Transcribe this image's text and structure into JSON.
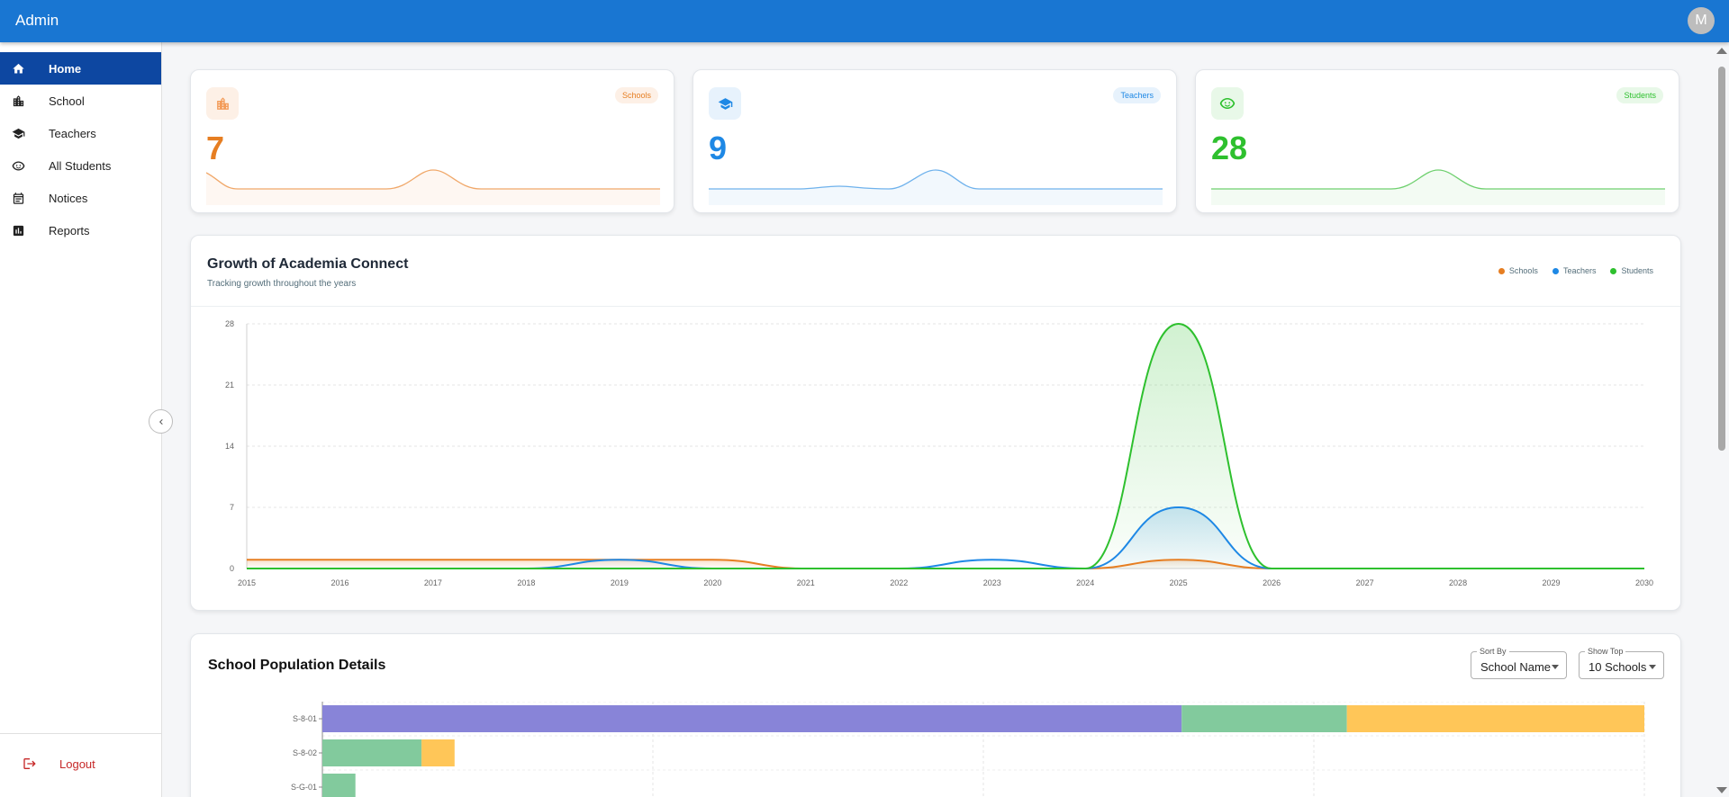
{
  "app": {
    "title": "Admin",
    "avatar_initial": "M"
  },
  "sidebar": {
    "items": [
      {
        "label": "Home",
        "icon": "home-icon",
        "active": true
      },
      {
        "label": "School",
        "icon": "building-icon",
        "active": false
      },
      {
        "label": "Teachers",
        "icon": "graduation-cap-icon",
        "active": false
      },
      {
        "label": "All Students",
        "icon": "face-icon",
        "active": false
      },
      {
        "label": "Notices",
        "icon": "calendar-icon",
        "active": false
      },
      {
        "label": "Reports",
        "icon": "bar-chart-icon",
        "active": false
      }
    ],
    "logout_label": "Logout"
  },
  "stats": [
    {
      "badge": "Schools",
      "value": "7",
      "color": "#e67e22",
      "bg": "#fdf0e6",
      "icon": "building-icon"
    },
    {
      "badge": "Teachers",
      "value": "9",
      "color": "#1e88e5",
      "bg": "#e7f2fc",
      "icon": "graduation-cap-icon"
    },
    {
      "badge": "Students",
      "value": "28",
      "color": "#2ec02e",
      "bg": "#e8f8e8",
      "icon": "face-icon"
    }
  ],
  "growth": {
    "title": "Growth of Academia Connect",
    "subtitle": "Tracking growth throughout the years",
    "legend": [
      {
        "label": "Schools",
        "color": "#e67e22"
      },
      {
        "label": "Teachers",
        "color": "#1e88e5"
      },
      {
        "label": "Students",
        "color": "#2ec02e"
      }
    ]
  },
  "chart_data": [
    {
      "type": "area",
      "title": "Growth of Academia Connect",
      "x": [
        2015,
        2016,
        2017,
        2018,
        2019,
        2020,
        2021,
        2022,
        2023,
        2024,
        2025,
        2026,
        2027,
        2028,
        2029,
        2030
      ],
      "yticks": [
        0,
        7,
        14,
        21,
        28
      ],
      "ylim": [
        0,
        28
      ],
      "series": [
        {
          "name": "Schools",
          "color": "#e67e22",
          "values": [
            1,
            1,
            1,
            1,
            1,
            1,
            0,
            0,
            0,
            0,
            1,
            0,
            0,
            0,
            0,
            0
          ]
        },
        {
          "name": "Teachers",
          "color": "#1e88e5",
          "values": [
            0,
            0,
            0,
            0,
            1,
            0,
            0,
            0,
            1,
            0,
            7,
            0,
            0,
            0,
            0,
            0
          ]
        },
        {
          "name": "Students",
          "color": "#2ec02e",
          "values": [
            0,
            0,
            0,
            0,
            0,
            0,
            0,
            0,
            0,
            0,
            28,
            0,
            0,
            0,
            0,
            0
          ]
        }
      ],
      "grid": true,
      "legend_position": "top-right"
    },
    {
      "type": "bar",
      "orientation": "horizontal",
      "stacked": true,
      "categories": [
        "S-8-01",
        "S-8-02",
        "S-G-01"
      ],
      "segment_colors": [
        "#8884d8",
        "#82ca9d",
        "#ffc658"
      ],
      "series": [
        {
          "values": [
            13,
            0,
            0
          ]
        },
        {
          "values": [
            2.5,
            1.5,
            0.5
          ]
        },
        {
          "values": [
            4.5,
            0.5,
            0
          ]
        }
      ],
      "xlim": [
        0,
        20
      ],
      "grid": true
    }
  ],
  "population": {
    "title": "School Population Details",
    "sort_by": {
      "label": "Sort By",
      "value": "School Name"
    },
    "show_top": {
      "label": "Show Top",
      "value": "10 Schools"
    }
  }
}
